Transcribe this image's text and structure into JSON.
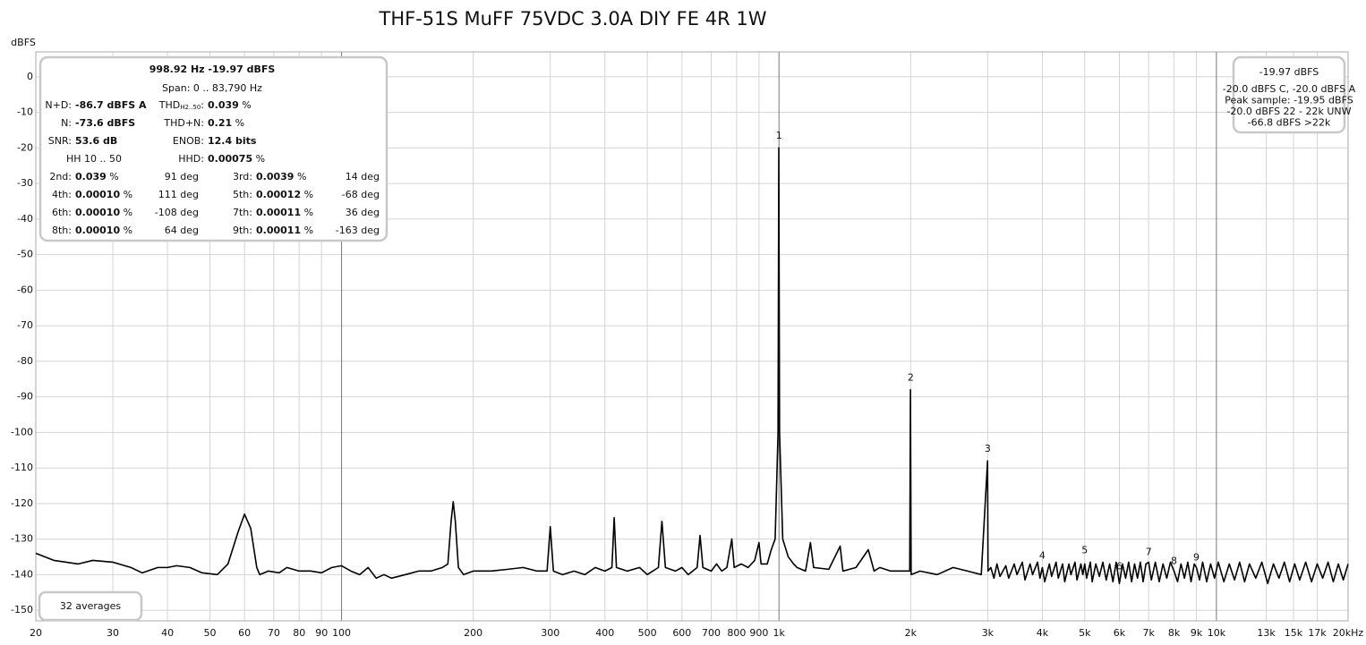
{
  "chart_data": {
    "type": "line",
    "title": "THF-51S MuFF 75VDC 3.0A DIY FE 4R 1W",
    "y_label": "dBFS",
    "color": "#000000",
    "grid": true,
    "xscale": "log",
    "xlim": [
      20,
      20000
    ],
    "ylim": [
      -153,
      7
    ],
    "xticks": [
      20,
      30,
      40,
      50,
      60,
      70,
      80,
      90,
      100,
      200,
      300,
      400,
      500,
      600,
      700,
      800,
      900,
      {
        "value": 1000,
        "label": "1k"
      },
      {
        "value": 2000,
        "label": "2k"
      },
      {
        "value": 3000,
        "label": "3k"
      },
      {
        "value": 4000,
        "label": "4k"
      },
      {
        "value": 5000,
        "label": "5k"
      },
      {
        "value": 6000,
        "label": "6k"
      },
      {
        "value": 7000,
        "label": "7k"
      },
      {
        "value": 8000,
        "label": "8k"
      },
      {
        "value": 9000,
        "label": "9k"
      },
      {
        "value": 10000,
        "label": "10k"
      },
      {
        "value": 13000,
        "label": "13k"
      },
      {
        "value": 15000,
        "label": "15k"
      },
      {
        "value": 17000,
        "label": "17k"
      },
      {
        "value": 20000,
        "label": "20kHz"
      }
    ],
    "yticks": [
      0,
      -10,
      -20,
      -30,
      -40,
      -50,
      -60,
      -70,
      -80,
      -90,
      -100,
      -110,
      -120,
      -130,
      -140,
      -150
    ],
    "x": [
      20,
      22,
      25,
      27,
      30,
      33,
      35,
      38,
      40,
      42,
      45,
      48,
      52,
      55,
      58,
      60,
      62,
      64,
      65,
      68,
      72,
      75,
      80,
      85,
      90,
      95,
      100,
      105,
      110,
      115,
      120,
      125,
      130,
      140,
      150,
      160,
      170,
      175,
      178,
      180,
      182,
      185,
      190,
      200,
      220,
      240,
      260,
      280,
      295,
      300,
      305,
      320,
      340,
      360,
      380,
      400,
      415,
      420,
      425,
      450,
      480,
      500,
      530,
      540,
      550,
      580,
      600,
      620,
      650,
      660,
      670,
      700,
      720,
      740,
      760,
      780,
      790,
      820,
      850,
      880,
      900,
      910,
      940,
      960,
      980,
      995,
      999,
      1003,
      1020,
      1050,
      1080,
      1100,
      1150,
      1180,
      1200,
      1300,
      1380,
      1400,
      1500,
      1600,
      1650,
      1700,
      1800,
      1900,
      1990,
      1998,
      2005,
      2100,
      2300,
      2500,
      2700,
      2900,
      2998,
      3005,
      3050,
      3100,
      3150,
      3200,
      3300,
      3350,
      3450,
      3500,
      3600,
      3650,
      3750,
      3800,
      3900,
      3950,
      4000,
      4050,
      4150,
      4200,
      4300,
      4350,
      4450,
      4500,
      4600,
      4650,
      4750,
      4800,
      4900,
      4950,
      5000,
      5050,
      5150,
      5200,
      5300,
      5400,
      5500,
      5600,
      5700,
      5800,
      5900,
      6000,
      6100,
      6200,
      6300,
      6400,
      6500,
      6600,
      6700,
      6800,
      6900,
      7000,
      7100,
      7250,
      7400,
      7550,
      7700,
      7850,
      8000,
      8150,
      8300,
      8450,
      8600,
      8750,
      8900,
      9000,
      9150,
      9300,
      9500,
      9700,
      9900,
      10100,
      10400,
      10700,
      11000,
      11300,
      11600,
      11900,
      12300,
      12700,
      13100,
      13500,
      13900,
      14300,
      14700,
      15100,
      15500,
      16000,
      16500,
      17000,
      17500,
      18000,
      18500,
      19000,
      19500,
      20000
    ],
    "values": [
      -134,
      -136,
      -137,
      -136,
      -136.5,
      -138,
      -139.5,
      -138,
      -138,
      -137.5,
      -138,
      -139.5,
      -140,
      -137,
      -128,
      -123,
      -127,
      -138,
      -140,
      -139,
      -139.5,
      -138,
      -139,
      -139,
      -139.5,
      -138,
      -137.5,
      -139,
      -140,
      -138,
      -141,
      -140,
      -141,
      -140,
      -139,
      -139,
      -138,
      -137,
      -125,
      -119.5,
      -125,
      -138,
      -140,
      -139,
      -139,
      -138.5,
      -138,
      -139,
      -139,
      -126.5,
      -139,
      -140,
      -139,
      -140,
      -138,
      -139,
      -138,
      -124,
      -138,
      -139,
      -138,
      -140,
      -138,
      -125,
      -138,
      -139,
      -138,
      -140,
      -138,
      -129,
      -138,
      -139,
      -137,
      -139,
      -138,
      -130,
      -138,
      -137,
      -138,
      -136,
      -131,
      -137,
      -137,
      -133,
      -130,
      -100,
      -19.97,
      -100,
      -130,
      -135,
      -137,
      -138,
      -139,
      -131,
      -138,
      -138.5,
      -132,
      -139,
      -138,
      -133,
      -139,
      -138,
      -139,
      -139,
      -139,
      -88,
      -140,
      -139,
      -140,
      -138,
      -139,
      -140,
      -108,
      -139,
      -138,
      -141,
      -137,
      -140.5,
      -137.5,
      -141,
      -137,
      -140,
      -136.5,
      -141.5,
      -137,
      -140,
      -136.5,
      -141,
      -138,
      -142,
      -137,
      -140.5,
      -136.5,
      -141,
      -137,
      -142,
      -137,
      -140,
      -136.5,
      -141.5,
      -137,
      -140,
      -137,
      -141,
      -136.5,
      -142,
      -137,
      -140.5,
      -136.5,
      -141.5,
      -137,
      -142,
      -136.5,
      -142.5,
      -137,
      -141,
      -136.5,
      -142,
      -137,
      -141,
      -136.5,
      -142,
      -137,
      -136.5,
      -141.5,
      -136.5,
      -142,
      -137,
      -141,
      -136.5,
      -139,
      -142,
      -137,
      -141,
      -136.5,
      -142,
      -137,
      -138,
      -141.5,
      -136.5,
      -142,
      -137,
      -141,
      -136.5,
      -142,
      -137,
      -141.5,
      -136.5,
      -142,
      -137,
      -141,
      -136.5,
      -142.5,
      -137,
      -141,
      -136.5,
      -142,
      -137,
      -141.5,
      -136.5,
      -142,
      -137,
      -141,
      -136.5,
      -142,
      -137,
      -141.5,
      -137
    ],
    "harmonic_markers": [
      {
        "label": "1",
        "x": 1000,
        "y": -19.97
      },
      {
        "label": "2",
        "x": 2000,
        "y": -88
      },
      {
        "label": "3",
        "x": 3000,
        "y": -108
      },
      {
        "label": "4",
        "x": 4000,
        "y": -138
      },
      {
        "label": "5",
        "x": 5000,
        "y": -136.5
      },
      {
        "label": "6",
        "x": 6000,
        "y": -141
      },
      {
        "label": "7",
        "x": 7000,
        "y": -137
      },
      {
        "label": "8",
        "x": 8000,
        "y": -139.5
      },
      {
        "label": "9",
        "x": 9000,
        "y": -138.5
      }
    ],
    "info_panel": {
      "headline": "998.92 Hz  -19.97 dBFS",
      "span": "Span: 0 .. 83,790 Hz",
      "rows": [
        [
          {
            "label": "N+D:",
            "value": "-86.7 dBFS A"
          },
          {
            "label": "THD",
            "sub": "H2..50",
            "colon": ":",
            "value": "0.039",
            "unit": "%"
          }
        ],
        [
          {
            "label": "N:",
            "value": "-73.6 dBFS"
          },
          {
            "label": "THD+N:",
            "value": "0.21",
            "unit": "%"
          }
        ],
        [
          {
            "label": "SNR:",
            "value": "53.6 dB"
          },
          {
            "label": "ENOB:",
            "value": "12.4 bits"
          }
        ],
        [
          {
            "label": "HH 10 .. 50"
          },
          {
            "label": "HHD:",
            "value": "0.00075",
            "unit": "%"
          }
        ]
      ],
      "harmonics": [
        [
          {
            "label": "2nd:",
            "value": "0.039",
            "unit": "%",
            "phase": "91 deg"
          },
          {
            "label": "3rd:",
            "value": "0.0039",
            "unit": "%",
            "phase": "14 deg"
          }
        ],
        [
          {
            "label": "4th:",
            "value": "0.00010",
            "unit": "%",
            "phase": "111 deg"
          },
          {
            "label": "5th:",
            "value": "0.00012",
            "unit": "%",
            "phase": "-68 deg"
          }
        ],
        [
          {
            "label": "6th:",
            "value": "0.00010",
            "unit": "%",
            "phase": "-108 deg"
          },
          {
            "label": "7th:",
            "value": "0.00011",
            "unit": "%",
            "phase": "36 deg"
          }
        ],
        [
          {
            "label": "8th:",
            "value": "0.00010",
            "unit": "%",
            "phase": "64 deg"
          },
          {
            "label": "9th:",
            "value": "0.00011",
            "unit": "%",
            "phase": "-163 deg"
          }
        ]
      ]
    },
    "level_panel": {
      "level": "-19.97 dBFS",
      "lines": [
        "-20.0 dBFS C, -20.0 dBFS A",
        "Peak sample: -19.95 dBFS",
        "-20.0 dBFS 22 - 22k UNW",
        "-66.8 dBFS >22k"
      ]
    },
    "averages": "32 averages"
  }
}
